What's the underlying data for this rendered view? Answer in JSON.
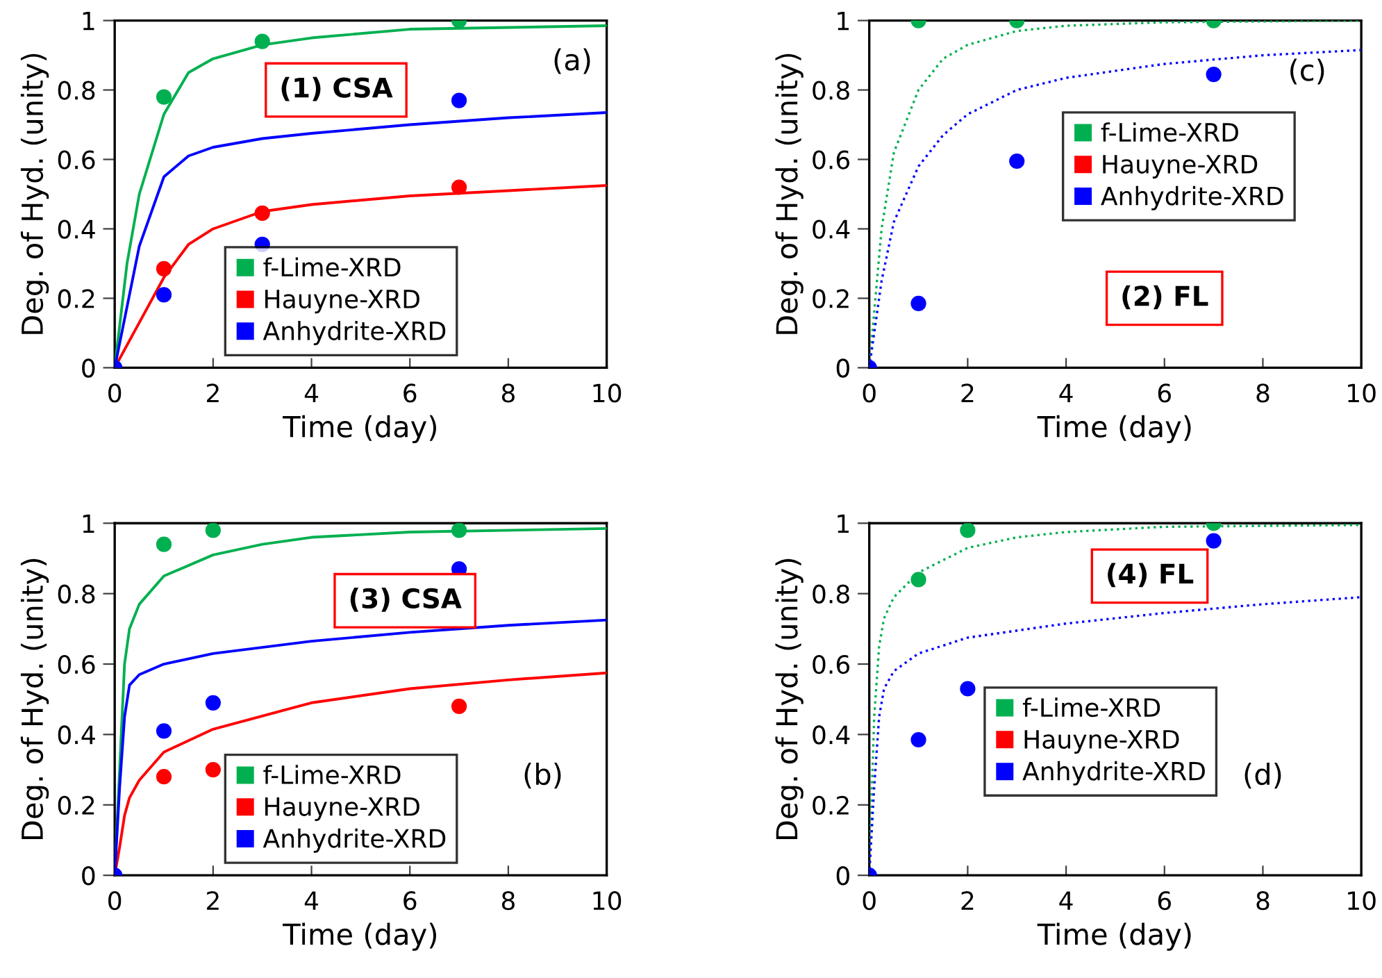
{
  "chart_data": [
    {
      "type": "scatter",
      "xlabel": "Time (day)",
      "ylabel": "Deg. of Hyd. (unity)",
      "annotations": [
        "(1) CSA",
        "(a)"
      ],
      "xlim": [
        0,
        10
      ],
      "xticks": [
        0,
        2,
        4,
        6,
        8,
        10
      ],
      "ylim": [
        0,
        1
      ],
      "yticks": [
        0,
        0.2,
        0.4,
        0.6,
        0.8,
        1
      ],
      "legend": "bottom",
      "series": [
        {
          "name": "f-Lime-XRD",
          "color": "#00b050",
          "marker": "circle",
          "x": [
            1,
            3,
            7
          ],
          "values": [
            0.78,
            0.94,
            1.0
          ]
        },
        {
          "name": "Hauyne-XRD",
          "color": "#ff0000",
          "marker": "circle",
          "x": [
            1,
            3,
            7
          ],
          "values": [
            0.285,
            0.445,
            0.52
          ]
        },
        {
          "name": "Anhydrite-XRD",
          "color": "#0000ff",
          "marker": "circle",
          "x": [
            0,
            1,
            3,
            7
          ],
          "values": [
            0,
            0.21,
            0.355,
            0.77
          ]
        },
        {
          "type": "line",
          "line_style": "solid",
          "color": "#00b050",
          "x": [
            0,
            0.25,
            0.5,
            1,
            1.5,
            2,
            3,
            4,
            6,
            10
          ],
          "values": [
            0,
            0.3,
            0.5,
            0.73,
            0.85,
            0.89,
            0.93,
            0.95,
            0.975,
            0.985
          ]
        },
        {
          "type": "line",
          "line_style": "solid",
          "color": "#ff0000",
          "x": [
            0,
            0.5,
            1,
            1.5,
            2,
            3,
            4,
            6,
            8,
            10
          ],
          "values": [
            0,
            0.13,
            0.26,
            0.355,
            0.4,
            0.45,
            0.47,
            0.495,
            0.51,
            0.525
          ]
        },
        {
          "type": "line",
          "line_style": "solid",
          "color": "#0000ff",
          "x": [
            0,
            0.5,
            1,
            1.5,
            2,
            3,
            4,
            6,
            8,
            10
          ],
          "values": [
            0,
            0.35,
            0.55,
            0.61,
            0.635,
            0.66,
            0.675,
            0.7,
            0.72,
            0.735
          ]
        }
      ]
    },
    {
      "type": "scatter",
      "xlabel": "Time (day)",
      "ylabel": "Deg. of Hyd. (unity)",
      "annotations": [
        "(2) FL",
        "(c)"
      ],
      "xlim": [
        0,
        10
      ],
      "xticks": [
        0,
        2,
        4,
        6,
        8,
        10
      ],
      "ylim": [
        0,
        1
      ],
      "yticks": [
        0,
        0.2,
        0.4,
        0.6,
        0.8,
        1
      ],
      "legend": "right",
      "series": [
        {
          "name": "f-Lime-XRD",
          "color": "#00b050",
          "marker": "circle",
          "x": [
            1,
            3,
            7
          ],
          "values": [
            1.0,
            1.0,
            1.0
          ]
        },
        {
          "name": "Hauyne-XRD",
          "color": "#ff0000",
          "marker": "circle"
        },
        {
          "name": "Anhydrite-XRD",
          "color": "#0000ff",
          "marker": "circle",
          "x": [
            0,
            1,
            3,
            7
          ],
          "values": [
            0,
            0.185,
            0.595,
            0.845
          ]
        },
        {
          "type": "line",
          "line_style": "dotted",
          "color": "#00b050",
          "x": [
            0,
            0.25,
            0.5,
            1,
            1.5,
            2,
            3,
            4,
            6,
            10
          ],
          "values": [
            0,
            0.4,
            0.62,
            0.8,
            0.89,
            0.93,
            0.97,
            0.985,
            0.995,
            1.0
          ]
        },
        {
          "type": "line",
          "line_style": "dotted",
          "color": "#0000ff",
          "x": [
            0,
            0.25,
            0.5,
            1,
            1.5,
            2,
            3,
            4,
            6,
            8,
            10
          ],
          "values": [
            0,
            0.25,
            0.42,
            0.58,
            0.67,
            0.73,
            0.8,
            0.835,
            0.875,
            0.9,
            0.915
          ]
        }
      ]
    },
    {
      "type": "scatter",
      "xlabel": "Time (day)",
      "ylabel": "Deg. of Hyd. (unity)",
      "annotations": [
        "(3) CSA",
        "(b)"
      ],
      "xlim": [
        0,
        10
      ],
      "xticks": [
        0,
        2,
        4,
        6,
        8,
        10
      ],
      "ylim": [
        0,
        1
      ],
      "yticks": [
        0,
        0.2,
        0.4,
        0.6,
        0.8,
        1
      ],
      "legend": "bottom",
      "series": [
        {
          "name": "f-Lime-XRD",
          "color": "#00b050",
          "marker": "circle",
          "x": [
            1,
            2,
            7
          ],
          "values": [
            0.94,
            0.98,
            0.98
          ]
        },
        {
          "name": "Hauyne-XRD",
          "color": "#ff0000",
          "marker": "circle",
          "x": [
            1,
            2,
            7
          ],
          "values": [
            0.28,
            0.3,
            0.48
          ]
        },
        {
          "name": "Anhydrite-XRD",
          "color": "#0000ff",
          "marker": "circle",
          "x": [
            0,
            1,
            2,
            7
          ],
          "values": [
            0,
            0.41,
            0.49,
            0.87
          ]
        },
        {
          "type": "line",
          "line_style": "solid",
          "color": "#00b050",
          "x": [
            0,
            0.1,
            0.2,
            0.3,
            0.5,
            1,
            2,
            3,
            4,
            6,
            10
          ],
          "values": [
            0,
            0.3,
            0.6,
            0.7,
            0.77,
            0.85,
            0.91,
            0.94,
            0.96,
            0.975,
            0.985
          ]
        },
        {
          "type": "line",
          "line_style": "solid",
          "color": "#ff0000",
          "x": [
            0,
            0.1,
            0.2,
            0.3,
            0.5,
            1,
            2,
            4,
            6,
            8,
            10
          ],
          "values": [
            0,
            0.08,
            0.17,
            0.22,
            0.27,
            0.35,
            0.415,
            0.49,
            0.53,
            0.555,
            0.575
          ]
        },
        {
          "type": "line",
          "line_style": "solid",
          "color": "#0000ff",
          "x": [
            0,
            0.1,
            0.2,
            0.3,
            0.5,
            1,
            2,
            4,
            6,
            8,
            10
          ],
          "values": [
            0,
            0.25,
            0.45,
            0.54,
            0.57,
            0.6,
            0.63,
            0.665,
            0.69,
            0.71,
            0.725
          ]
        }
      ]
    },
    {
      "type": "scatter",
      "xlabel": "Time (day)",
      "ylabel": "Deg. of Hyd. (unity)",
      "annotations": [
        "(4) FL",
        "(d)"
      ],
      "xlim": [
        0,
        10
      ],
      "xticks": [
        0,
        2,
        4,
        6,
        8,
        10
      ],
      "ylim": [
        0,
        1
      ],
      "yticks": [
        0,
        0.2,
        0.4,
        0.6,
        0.8,
        1
      ],
      "legend": "center",
      "series": [
        {
          "name": "f-Lime-XRD",
          "color": "#00b050",
          "marker": "circle",
          "x": [
            1,
            2,
            7
          ],
          "values": [
            0.84,
            0.98,
            1.0
          ]
        },
        {
          "name": "Hauyne-XRD",
          "color": "#ff0000",
          "marker": "circle"
        },
        {
          "name": "Anhydrite-XRD",
          "color": "#0000ff",
          "marker": "circle",
          "x": [
            0,
            1,
            2,
            7
          ],
          "values": [
            0,
            0.385,
            0.53,
            0.95
          ]
        },
        {
          "type": "line",
          "line_style": "dotted",
          "color": "#00b050",
          "x": [
            0,
            0.1,
            0.2,
            0.3,
            0.5,
            1,
            2,
            3,
            4,
            6,
            10
          ],
          "values": [
            0,
            0.45,
            0.65,
            0.73,
            0.79,
            0.86,
            0.93,
            0.96,
            0.975,
            0.99,
            0.995
          ]
        },
        {
          "type": "line",
          "line_style": "dotted",
          "color": "#0000ff",
          "x": [
            0,
            0.1,
            0.2,
            0.3,
            0.5,
            1,
            2,
            4,
            6,
            8,
            10
          ],
          "values": [
            0,
            0.25,
            0.45,
            0.53,
            0.58,
            0.63,
            0.675,
            0.715,
            0.745,
            0.77,
            0.79
          ]
        }
      ]
    }
  ]
}
